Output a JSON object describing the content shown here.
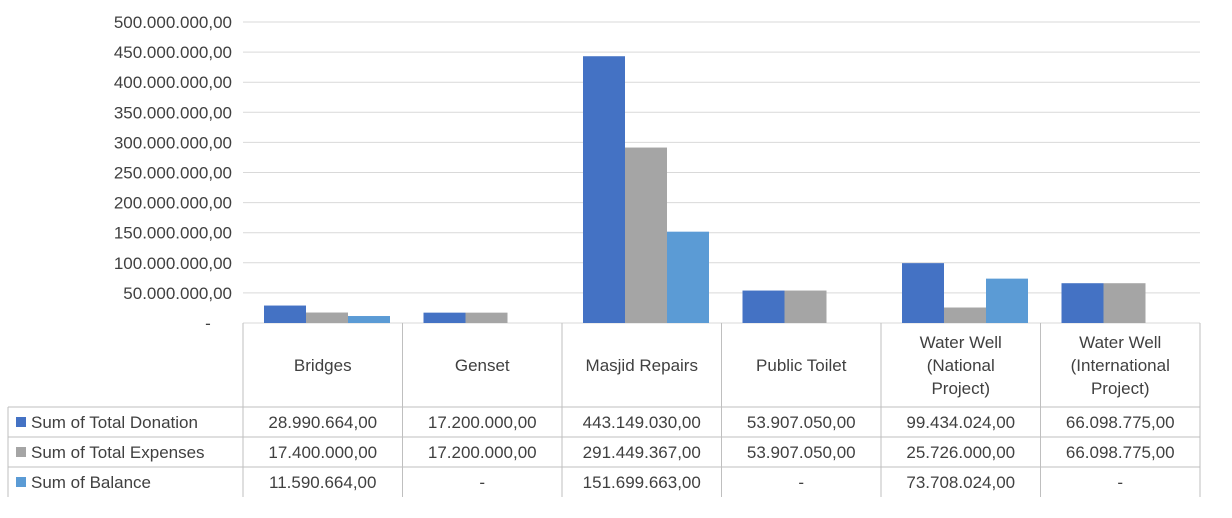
{
  "chart_data": {
    "type": "bar",
    "categories": [
      [
        "Bridges"
      ],
      [
        "Genset"
      ],
      [
        "Masjid Repairs"
      ],
      [
        "Public Toilet"
      ],
      [
        "Water Well",
        "(National",
        "Project)"
      ],
      [
        "Water Well",
        "(International",
        "Project)"
      ]
    ],
    "series": [
      {
        "name": "Sum of Total Donation",
        "color": "#4472C4",
        "values": [
          28990664,
          17200000,
          443149030,
          53907050,
          99434024,
          66098775
        ],
        "labels": [
          "28.990.664,00",
          "17.200.000,00",
          "443.149.030,00",
          "53.907.050,00",
          "99.434.024,00",
          "66.098.775,00"
        ]
      },
      {
        "name": "Sum of Total Expenses",
        "color": "#A5A5A5",
        "values": [
          17400000,
          17200000,
          291449367,
          53907050,
          25726000,
          66098775
        ],
        "labels": [
          "17.400.000,00",
          "17.200.000,00",
          "291.449.367,00",
          "53.907.050,00",
          "25.726.000,00",
          "66.098.775,00"
        ]
      },
      {
        "name": "Sum of Balance",
        "color": "#5B9BD5",
        "values": [
          11590664,
          0,
          151699663,
          0,
          73708024,
          0
        ],
        "labels": [
          "11.590.664,00",
          "-",
          "151.699.663,00",
          "-",
          "73.708.024,00",
          "-"
        ]
      }
    ],
    "ylim": [
      0,
      500000000
    ],
    "yticks": [
      {
        "value": 0,
        "label": "-"
      },
      {
        "value": 50000000,
        "label": "50.000.000,00"
      },
      {
        "value": 100000000,
        "label": "100.000.000,00"
      },
      {
        "value": 150000000,
        "label": "150.000.000,00"
      },
      {
        "value": 200000000,
        "label": "200.000.000,00"
      },
      {
        "value": 250000000,
        "label": "250.000.000,00"
      },
      {
        "value": 300000000,
        "label": "300.000.000,00"
      },
      {
        "value": 350000000,
        "label": "350.000.000,00"
      },
      {
        "value": 400000000,
        "label": "400.000.000,00"
      },
      {
        "value": 450000000,
        "label": "450.000.000,00"
      },
      {
        "value": 500000000,
        "label": "500.000.000,00"
      }
    ],
    "grid": true,
    "legend": "data-table"
  }
}
